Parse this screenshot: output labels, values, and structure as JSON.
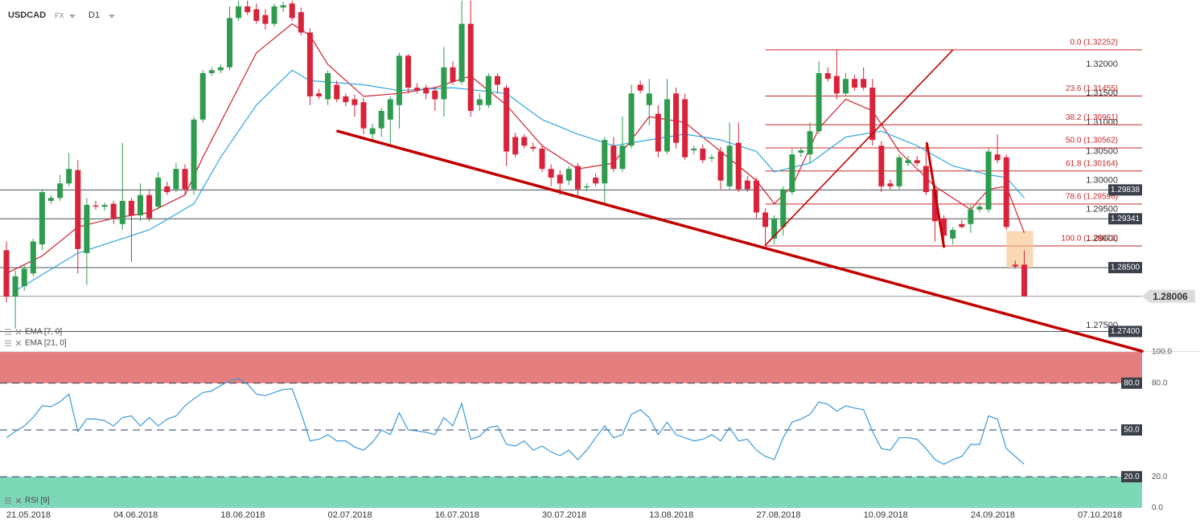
{
  "chart_data": [
    {
      "type": "candlestick",
      "title": "USDCAD",
      "market": "FX",
      "timeframe": "D1",
      "xlim": [
        -0.72,
        127.2
      ],
      "ylim": [
        1.2706,
        1.3311
      ],
      "xticks": [
        {
          "value": 0,
          "label": "21.05.2018"
        },
        {
          "value": 12,
          "label": "04.06.2018"
        },
        {
          "value": 24,
          "label": "18.06.2018"
        },
        {
          "value": 36,
          "label": "02.07.2018"
        },
        {
          "value": 48,
          "label": "16.07.2018"
        },
        {
          "value": 60,
          "label": "30.07.2018"
        },
        {
          "value": 72,
          "label": "13.08.2018"
        },
        {
          "value": 84,
          "label": "27.08.2018"
        },
        {
          "value": 96,
          "label": "10.09.2018"
        },
        {
          "value": 108,
          "label": "24.09.2018"
        },
        {
          "value": 120,
          "label": "07.10.2018"
        }
      ],
      "yticks": [
        {
          "value": 1.275,
          "label": "1.27500"
        },
        {
          "value": 1.29,
          "label": "1.29000"
        },
        {
          "value": 1.295,
          "label": "1.29500"
        },
        {
          "value": 1.3,
          "label": "1.30000"
        },
        {
          "value": 1.305,
          "label": "1.30500"
        },
        {
          "value": 1.31,
          "label": "1.31000"
        },
        {
          "value": 1.315,
          "label": "1.31500"
        },
        {
          "value": 1.32,
          "label": "1.32000"
        }
      ],
      "up_color": "#2e9b4e",
      "down_color": "#d8233a",
      "open": [
        1.288,
        1.28,
        1.2818,
        1.284,
        1.289,
        1.2965,
        1.297,
        1.2995,
        1.3018,
        1.2875,
        1.2957,
        1.2955,
        1.296,
        1.2925,
        1.2965,
        1.294,
        1.2975,
        1.2955,
        1.299,
        1.2985,
        1.302,
        1.2985,
        1.3105,
        1.3185,
        1.319,
        1.3195,
        1.328,
        1.33,
        1.3295,
        1.3285,
        1.327,
        1.3298,
        1.3305,
        1.329,
        1.3255,
        1.315,
        1.314,
        1.3165,
        1.3145,
        1.314,
        1.3135,
        1.308,
        1.309,
        1.3105,
        1.313,
        1.3215,
        1.316,
        1.316,
        1.3155,
        1.314,
        1.3195,
        1.317,
        1.327,
        1.313,
        1.313,
        1.318,
        1.316,
        1.3075,
        1.3075,
        1.3058,
        1.3055,
        1.302,
        1.301,
        1.3,
        1.3025,
        1.2988,
        1.3005,
        1.2995,
        1.306,
        1.302,
        1.306,
        1.3165,
        1.313,
        1.3115,
        1.305,
        1.315,
        1.314,
        1.3052,
        1.3055,
        1.3038,
        1.305,
        1.299,
        1.3065,
        1.3,
        1.3,
        1.2945,
        1.29,
        1.292,
        1.298,
        1.3048,
        1.3045,
        1.3085,
        1.3185,
        1.318,
        1.315,
        1.3175,
        1.3175,
        1.316,
        1.306,
        1.2995,
        1.299,
        1.303,
        1.3035,
        1.3025,
        1.2985,
        1.2935,
        1.29,
        1.2925,
        1.2925,
        1.295,
        1.295,
        1.3045,
        1.304,
        1.2855,
        1.2855
      ],
      "high": [
        1.2895,
        1.2845,
        1.2855,
        1.29,
        1.2985,
        1.2975,
        1.301,
        1.3048,
        1.3035,
        1.297,
        1.2965,
        1.2962,
        1.2965,
        1.3065,
        1.297,
        1.2995,
        1.2985,
        1.3015,
        1.2998,
        1.303,
        1.3028,
        1.311,
        1.319,
        1.3195,
        1.32,
        1.33,
        1.331,
        1.331,
        1.3305,
        1.3295,
        1.3305,
        1.3308,
        1.331,
        1.3298,
        1.3262,
        1.3158,
        1.319,
        1.3172,
        1.315,
        1.3148,
        1.3142,
        1.3098,
        1.3125,
        1.3145,
        1.322,
        1.3218,
        1.3168,
        1.3165,
        1.3162,
        1.323,
        1.3205,
        1.331,
        1.331,
        1.315,
        1.3185,
        1.3185,
        1.3165,
        1.3082,
        1.308,
        1.3065,
        1.3062,
        1.3028,
        1.3018,
        1.3025,
        1.303,
        1.2995,
        1.3012,
        1.3075,
        1.3075,
        1.311,
        1.3165,
        1.3172,
        1.3175,
        1.313,
        1.3175,
        1.316,
        1.315,
        1.306,
        1.3062,
        1.3045,
        1.3058,
        1.31,
        1.31,
        1.3008,
        1.3005,
        1.2952,
        1.294,
        1.299,
        1.3055,
        1.3058,
        1.31,
        1.3205,
        1.3195,
        1.3225,
        1.3185,
        1.3182,
        1.3195,
        1.3175,
        1.3068,
        1.3002,
        1.3045,
        1.3042,
        1.3042,
        1.306,
        1.299,
        1.294,
        1.292,
        1.2932,
        1.2958,
        1.2962,
        1.3055,
        1.308,
        1.3045,
        1.2862,
        1.288
      ],
      "low": [
        1.279,
        1.2745,
        1.281,
        1.2835,
        1.288,
        1.296,
        1.2965,
        1.299,
        1.284,
        1.282,
        1.295,
        1.2948,
        1.2925,
        1.2915,
        1.286,
        1.293,
        1.293,
        1.295,
        1.2975,
        1.298,
        1.2975,
        1.2975,
        1.31,
        1.318,
        1.3185,
        1.319,
        1.3275,
        1.3285,
        1.327,
        1.326,
        1.3265,
        1.329,
        1.3275,
        1.325,
        1.313,
        1.314,
        1.313,
        1.3135,
        1.3128,
        1.311,
        1.308,
        1.307,
        1.3075,
        1.306,
        1.309,
        1.315,
        1.315,
        1.314,
        1.312,
        1.311,
        1.3165,
        1.3165,
        1.311,
        1.312,
        1.3125,
        1.315,
        1.3025,
        1.304,
        1.3055,
        1.305,
        1.3015,
        1.299,
        1.2975,
        1.2992,
        1.297,
        1.2982,
        1.299,
        1.296,
        1.3015,
        1.3015,
        1.3055,
        1.315,
        1.3095,
        1.304,
        1.3045,
        1.3055,
        1.3035,
        1.3045,
        1.303,
        1.3032,
        1.2985,
        1.2985,
        1.298,
        1.298,
        1.2935,
        1.2887,
        1.289,
        1.2905,
        1.2975,
        1.304,
        1.303,
        1.308,
        1.317,
        1.314,
        1.3145,
        1.3155,
        1.3155,
        1.306,
        1.298,
        1.2985,
        1.2985,
        1.3025,
        1.3025,
        1.2975,
        1.2895,
        1.289,
        1.289,
        1.2918,
        1.291,
        1.2945,
        1.2945,
        1.303,
        1.2915,
        1.2848,
        1.28
      ],
      "close": [
        1.28,
        1.2835,
        1.2848,
        1.2895,
        1.298,
        1.297,
        1.2995,
        1.302,
        1.2882,
        1.2958,
        1.2955,
        1.2958,
        1.2935,
        1.2965,
        1.294,
        1.2975,
        1.2935,
        1.3005,
        1.298,
        1.302,
        1.2985,
        1.3105,
        1.3185,
        1.319,
        1.3195,
        1.328,
        1.33,
        1.329,
        1.3275,
        1.327,
        1.33,
        1.3302,
        1.328,
        1.3255,
        1.3145,
        1.3145,
        1.3185,
        1.314,
        1.3135,
        1.313,
        1.309,
        1.309,
        1.312,
        1.314,
        1.3215,
        1.316,
        1.3155,
        1.315,
        1.314,
        1.3195,
        1.317,
        1.327,
        1.312,
        1.314,
        1.318,
        1.3165,
        1.305,
        1.3045,
        1.306,
        1.3055,
        1.302,
        1.3005,
        1.2995,
        1.302,
        1.2985,
        1.299,
        1.2995,
        1.307,
        1.302,
        1.306,
        1.315,
        1.3155,
        1.315,
        1.305,
        1.314,
        1.3065,
        1.304,
        1.3055,
        1.3035,
        1.304,
        1.3,
        1.306,
        1.2985,
        1.2985,
        1.2945,
        1.292,
        1.2935,
        1.2985,
        1.3045,
        1.3052,
        1.3085,
        1.3185,
        1.3175,
        1.315,
        1.3175,
        1.316,
        1.316,
        1.307,
        1.299,
        1.299,
        1.304,
        1.3035,
        1.303,
        1.298,
        1.293,
        1.2905,
        1.2915,
        1.292,
        1.295,
        1.2955,
        1.305,
        1.3035,
        1.292,
        1.2852,
        1.28006
      ],
      "overlays": [
        {
          "name": "EMA [7, 0]",
          "color": "#d0202f",
          "x": [
            0,
            4,
            8,
            12,
            16,
            20,
            22,
            25,
            28,
            32,
            34,
            36,
            40,
            44,
            48,
            52,
            56,
            60,
            64,
            68,
            72,
            76,
            80,
            84,
            86,
            88,
            91,
            94,
            97,
            100,
            104,
            108,
            110,
            112,
            114
          ],
          "values": [
            1.284,
            1.287,
            1.292,
            1.2935,
            1.2945,
            1.2975,
            1.304,
            1.313,
            1.322,
            1.327,
            1.325,
            1.32,
            1.3145,
            1.315,
            1.316,
            1.318,
            1.313,
            1.306,
            1.302,
            1.303,
            1.311,
            1.31,
            1.305,
            1.3,
            1.296,
            1.299,
            1.309,
            1.314,
            1.312,
            1.305,
            1.299,
            1.295,
            1.2985,
            1.299,
            1.291
          ]
        },
        {
          "name": "EMA [21, 0]",
          "color": "#2fa6e0",
          "x": [
            1,
            8,
            16,
            21,
            24,
            28,
            32,
            34,
            40,
            44,
            50,
            56,
            60,
            64,
            68,
            72,
            76,
            80,
            84,
            86,
            90,
            94,
            98,
            102,
            106,
            110,
            112,
            114
          ],
          "values": [
            1.281,
            1.2875,
            1.2915,
            1.296,
            1.304,
            1.313,
            1.319,
            1.3172,
            1.3165,
            1.3155,
            1.316,
            1.315,
            1.3105,
            1.308,
            1.306,
            1.307,
            1.308,
            1.307,
            1.305,
            1.3015,
            1.303,
            1.3075,
            1.3085,
            1.306,
            1.3025,
            1.301,
            1.3005,
            1.297
          ]
        }
      ],
      "price_lines": [
        1.29838,
        1.29341,
        {
          "value": 1.285,
          "label": "1.28500"
        },
        {
          "value": 1.274,
          "label": "1.27400"
        }
      ],
      "last_price": 1.28006,
      "fib_start": 85,
      "fib_color": "#c62828",
      "fib_levels": [
        {
          "value": 1.32252,
          "label": "0.0 (1.32252)"
        },
        {
          "value": 1.31455,
          "label": "23.6 (1.31455)"
        },
        {
          "value": 1.30961,
          "label": "38.2 (1.30961)"
        },
        {
          "value": 1.30562,
          "label": "50.0 (1.30562)"
        },
        {
          "value": 1.30164,
          "label": "61.8 (1.30164)"
        },
        {
          "value": 1.29596,
          "label": "78.6 (1.29596)"
        },
        {
          "value": 1.28873,
          "label": "100.0 (1.28873)"
        }
      ],
      "trendline_color": "#c00000",
      "trendlines": [
        {
          "x": [
            37.1,
            127.2
          ],
          "y": [
            1.3085,
            1.2706
          ]
        },
        {
          "x": [
            85,
            106
          ],
          "y": [
            1.28885,
            1.32249
          ]
        },
        {
          "x": [
            103.1,
            105
          ],
          "y": [
            1.3064,
            1.2886
          ]
        }
      ],
      "highlight": {
        "x": [
          112,
          115
        ],
        "y": [
          1.2913,
          1.285
        ],
        "color": "#f6c48e"
      }
    },
    {
      "type": "line",
      "name": "RSI [9]",
      "color": "#3a9ad9",
      "ylim": [
        0,
        100
      ],
      "yticks": [
        {
          "value": 100,
          "label": "100.0"
        },
        {
          "value": 80,
          "label": "80.0"
        },
        {
          "value": 20,
          "label": "20.0"
        },
        {
          "value": 0,
          "label": "0.0"
        }
      ],
      "levels": [
        {
          "value": 80,
          "label": "80.0"
        },
        {
          "value": 50,
          "label": "50.0"
        },
        {
          "value": 20,
          "label": "20.0"
        }
      ],
      "zones": [
        {
          "from": 80,
          "to": 100,
          "color": "#e57f7f"
        },
        {
          "from": 0,
          "to": 20,
          "color": "#7dd8b8"
        }
      ],
      "values": [
        45,
        49,
        52.6,
        58,
        65.5,
        65,
        68,
        73,
        49,
        57,
        57,
        56,
        52.6,
        58,
        59,
        52.6,
        58,
        52.6,
        57,
        59,
        65.5,
        70,
        74,
        75,
        78.5,
        81.6,
        83,
        79.5,
        73,
        72,
        74,
        76,
        76.4,
        61,
        43,
        44,
        47,
        43,
        43,
        39,
        37,
        42,
        50,
        47,
        61,
        50,
        49.4,
        48.5,
        47,
        58,
        52.6,
        67,
        44,
        46,
        51.6,
        52.6,
        40.7,
        39.7,
        43,
        37,
        39.7,
        36,
        33.5,
        37,
        31,
        37,
        45,
        52.6,
        45,
        47,
        60,
        63,
        58,
        47,
        55,
        47,
        45,
        43,
        44,
        47,
        43,
        51.6,
        43,
        44,
        37,
        33,
        31,
        45,
        55,
        57,
        60,
        68,
        66.5,
        62,
        65.5,
        64,
        63,
        49,
        38,
        37,
        45,
        45,
        44,
        38,
        31,
        28,
        31,
        33,
        40.7,
        40.7,
        59,
        57,
        38,
        33,
        28
      ]
    }
  ]
}
